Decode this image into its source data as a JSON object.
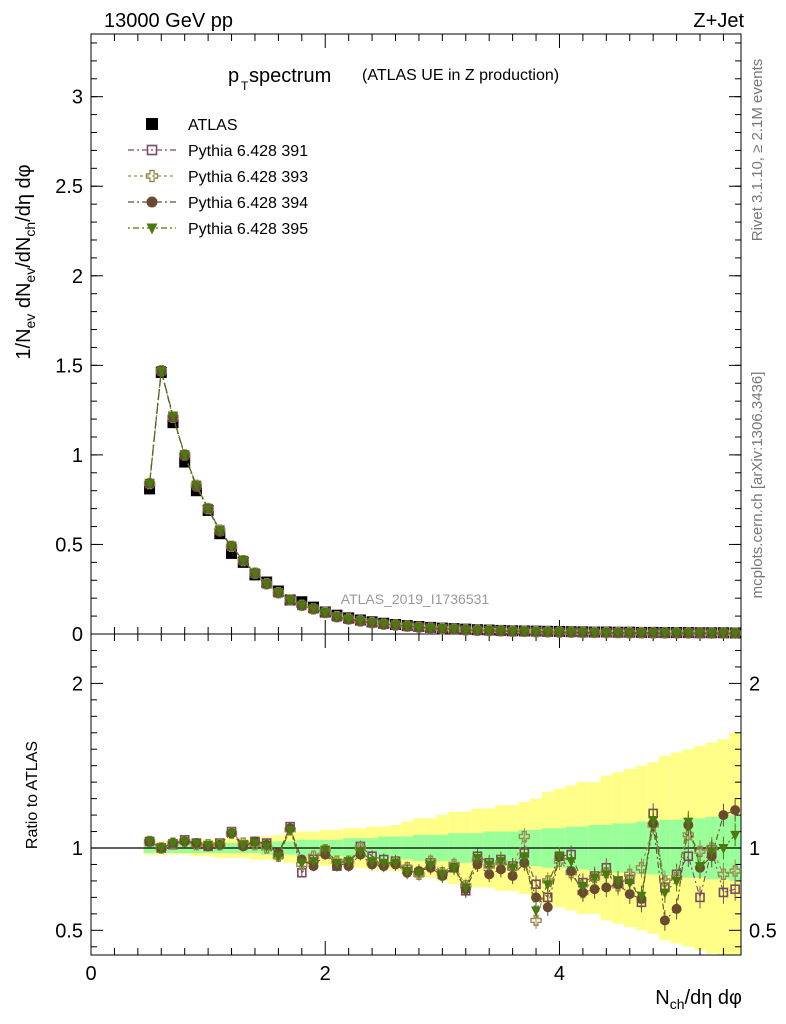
{
  "header": {
    "left": "13000 GeV pp",
    "right": "Z+Jet"
  },
  "side_text": {
    "rivet": "Rivet 3.1.10, ≥ 2.1M events",
    "mcplots": "mcplots.cern.ch [arXiv:1306.3436]"
  },
  "watermark": "ATLAS_2019_I1736531",
  "chart_data": [
    {
      "type": "scatter",
      "panel": "main",
      "title_main": "p",
      "title_sub": "T",
      "title_rest": " spectrum",
      "title_paren": "(ATLAS UE in Z production)",
      "ylabel": "1/N_ev dN_ev/dN_ch/dη dφ",
      "xlim": [
        0,
        5.55
      ],
      "ylim": [
        0,
        3.35
      ],
      "y_ticks": [
        0,
        0.5,
        1,
        1.5,
        2,
        2.5,
        3
      ],
      "y_tick_labels": [
        "0",
        "0.5",
        "1",
        "1.5",
        "2",
        "2.5",
        "3"
      ],
      "x": [
        0.5,
        0.6,
        0.7,
        0.8,
        0.9,
        1.0,
        1.1,
        1.2,
        1.3,
        1.4,
        1.5,
        1.6,
        1.7,
        1.8,
        1.9,
        2.0,
        2.1,
        2.2,
        2.3,
        2.4,
        2.5,
        2.6,
        2.7,
        2.8,
        2.9,
        3.0,
        3.1,
        3.2,
        3.3,
        3.4,
        3.5,
        3.6,
        3.7,
        3.8,
        3.9,
        4.0,
        4.1,
        4.2,
        4.3,
        4.4,
        4.5,
        4.6,
        4.7,
        4.8,
        4.9,
        5.0,
        5.1,
        5.2,
        5.3,
        5.4,
        5.5
      ],
      "series": [
        {
          "name": "ATLAS",
          "marker": "filled-square",
          "color": "#000000",
          "values": [
            0.81,
            1.46,
            1.18,
            0.96,
            0.8,
            0.69,
            0.56,
            0.45,
            0.4,
            0.33,
            0.29,
            0.24,
            0.19,
            0.18,
            0.15,
            0.123,
            0.105,
            0.09,
            0.078,
            0.068,
            0.06,
            0.053,
            0.047,
            0.042,
            0.037,
            0.033,
            0.03,
            0.027,
            0.024,
            0.022,
            0.02,
            0.018,
            0.017,
            0.016,
            0.015,
            0.014,
            0.013,
            0.012,
            0.011,
            0.011,
            0.01,
            0.01,
            0.009,
            0.009,
            0.008,
            0.008,
            0.008,
            0.007,
            0.007,
            0.007,
            0.006
          ]
        },
        {
          "name": "Pythia 6.428 391",
          "marker": "open-square",
          "color": "#7a4a60",
          "values": [
            0.84,
            1.47,
            1.21,
            1.0,
            0.83,
            0.7,
            0.58,
            0.49,
            0.41,
            0.34,
            0.28,
            0.23,
            0.19,
            0.16,
            0.14,
            0.122,
            0.096,
            0.083,
            0.073,
            0.062,
            0.055,
            0.05,
            0.043,
            0.038,
            0.033,
            0.03,
            0.027,
            0.022,
            0.021,
            0.019,
            0.018,
            0.016,
            0.015,
            0.013,
            0.012,
            0.011,
            0.01,
            0.009,
            0.009,
            0.008,
            0.008,
            0.007,
            0.007,
            0.006,
            0.006,
            0.006,
            0.006,
            0.005,
            0.005,
            0.005,
            0.005
          ]
        },
        {
          "name": "Pythia 6.428 393",
          "marker": "open-cross",
          "color": "#9a8a50",
          "values": [
            0.84,
            1.47,
            1.21,
            1.0,
            0.83,
            0.7,
            0.58,
            0.49,
            0.41,
            0.34,
            0.28,
            0.23,
            0.19,
            0.16,
            0.14,
            0.12,
            0.097,
            0.084,
            0.073,
            0.063,
            0.055,
            0.05,
            0.044,
            0.038,
            0.033,
            0.03,
            0.027,
            0.023,
            0.021,
            0.019,
            0.018,
            0.016,
            0.015,
            0.013,
            0.012,
            0.011,
            0.01,
            0.009,
            0.009,
            0.008,
            0.008,
            0.007,
            0.007,
            0.006,
            0.006,
            0.006,
            0.006,
            0.005,
            0.005,
            0.005,
            0.005
          ]
        },
        {
          "name": "Pythia 6.428 394",
          "marker": "filled-circle",
          "color": "#6a4a30",
          "values": [
            0.84,
            1.47,
            1.21,
            1.0,
            0.82,
            0.7,
            0.57,
            0.49,
            0.41,
            0.34,
            0.28,
            0.23,
            0.19,
            0.16,
            0.14,
            0.118,
            0.094,
            0.082,
            0.071,
            0.062,
            0.054,
            0.049,
            0.043,
            0.037,
            0.032,
            0.029,
            0.026,
            0.022,
            0.02,
            0.018,
            0.017,
            0.015,
            0.014,
            0.012,
            0.011,
            0.01,
            0.009,
            0.009,
            0.008,
            0.008,
            0.007,
            0.007,
            0.006,
            0.006,
            0.006,
            0.005,
            0.005,
            0.005,
            0.005,
            0.005,
            0.005
          ]
        },
        {
          "name": "Pythia 6.428 395",
          "marker": "filled-triangle-down",
          "color": "#4a7a10",
          "values": [
            0.84,
            1.47,
            1.22,
            1.0,
            0.83,
            0.7,
            0.58,
            0.49,
            0.41,
            0.34,
            0.28,
            0.23,
            0.19,
            0.16,
            0.14,
            0.121,
            0.096,
            0.084,
            0.073,
            0.063,
            0.055,
            0.05,
            0.044,
            0.038,
            0.033,
            0.03,
            0.027,
            0.023,
            0.021,
            0.019,
            0.018,
            0.016,
            0.015,
            0.013,
            0.012,
            0.011,
            0.01,
            0.009,
            0.009,
            0.008,
            0.008,
            0.007,
            0.007,
            0.006,
            0.006,
            0.006,
            0.006,
            0.005,
            0.005,
            0.005,
            0.005
          ]
        }
      ]
    },
    {
      "type": "scatter",
      "panel": "ratio",
      "ylabel": "Ratio to ATLAS",
      "xlabel": "N_ch/dη dφ",
      "xlim": [
        0,
        5.55
      ],
      "ylim": [
        0.35,
        2.3
      ],
      "y_ticks": [
        0.5,
        1,
        2
      ],
      "y_tick_labels": [
        "0.5",
        "1",
        "2"
      ],
      "x_ticks": [
        0,
        2,
        4
      ],
      "x_tick_labels": [
        "0",
        "2",
        "4"
      ],
      "band_inner_color": "#99ff99",
      "band_outer_color": "#ffff88",
      "x": [
        0.5,
        0.6,
        0.7,
        0.8,
        0.9,
        1.0,
        1.1,
        1.2,
        1.3,
        1.4,
        1.5,
        1.6,
        1.7,
        1.8,
        1.9,
        2.0,
        2.1,
        2.2,
        2.3,
        2.4,
        2.5,
        2.6,
        2.7,
        2.8,
        2.9,
        3.0,
        3.1,
        3.2,
        3.3,
        3.4,
        3.5,
        3.6,
        3.7,
        3.8,
        3.9,
        4.0,
        4.1,
        4.2,
        4.3,
        4.4,
        4.5,
        4.6,
        4.7,
        4.8,
        4.9,
        5.0,
        5.1,
        5.2,
        5.3,
        5.4,
        5.5
      ],
      "band_inner": [
        0.03,
        0.03,
        0.03,
        0.03,
        0.03,
        0.03,
        0.03,
        0.03,
        0.03,
        0.03,
        0.04,
        0.04,
        0.04,
        0.05,
        0.05,
        0.05,
        0.05,
        0.06,
        0.06,
        0.06,
        0.07,
        0.07,
        0.07,
        0.08,
        0.08,
        0.08,
        0.09,
        0.09,
        0.09,
        0.1,
        0.1,
        0.1,
        0.11,
        0.11,
        0.12,
        0.12,
        0.13,
        0.13,
        0.14,
        0.14,
        0.15,
        0.15,
        0.16,
        0.16,
        0.17,
        0.17,
        0.18,
        0.18,
        0.19,
        0.19,
        0.2
      ],
      "band_outer": [
        0.04,
        0.04,
        0.04,
        0.04,
        0.05,
        0.05,
        0.06,
        0.06,
        0.06,
        0.07,
        0.07,
        0.08,
        0.09,
        0.1,
        0.1,
        0.11,
        0.11,
        0.12,
        0.12,
        0.13,
        0.13,
        0.14,
        0.16,
        0.18,
        0.18,
        0.2,
        0.22,
        0.22,
        0.24,
        0.24,
        0.26,
        0.26,
        0.28,
        0.3,
        0.34,
        0.36,
        0.38,
        0.4,
        0.4,
        0.44,
        0.46,
        0.48,
        0.5,
        0.52,
        0.56,
        0.58,
        0.6,
        0.62,
        0.64,
        0.66,
        0.7
      ],
      "series": [
        {
          "name": "Pythia 6.428 391",
          "marker": "open-square",
          "color": "#7a4a60",
          "values": [
            1.04,
            1.0,
            1.02,
            1.05,
            1.03,
            1.01,
            1.03,
            1.1,
            1.02,
            1.04,
            1.03,
            0.96,
            1.13,
            0.85,
            0.93,
            0.98,
            0.89,
            0.91,
            1.01,
            0.95,
            0.93,
            0.92,
            0.87,
            0.85,
            0.91,
            0.84,
            0.88,
            0.74,
            0.95,
            0.91,
            0.93,
            0.89,
            0.97,
            0.78,
            0.7,
            0.95,
            0.96,
            0.79,
            0.83,
            0.88,
            0.8,
            0.81,
            0.67,
            1.21,
            0.76,
            0.84,
            0.95,
            0.7,
            0.99,
            0.73,
            0.75
          ]
        },
        {
          "name": "Pythia 6.428 393",
          "marker": "open-cross",
          "color": "#9a8a50",
          "values": [
            1.04,
            1.0,
            1.03,
            1.04,
            1.02,
            1.02,
            1.02,
            1.09,
            1.03,
            1.02,
            1.0,
            0.95,
            1.11,
            0.9,
            0.95,
            0.99,
            0.92,
            0.92,
            1.0,
            0.91,
            0.9,
            0.91,
            0.88,
            0.84,
            0.92,
            0.85,
            0.9,
            0.77,
            0.93,
            0.89,
            0.91,
            0.88,
            1.07,
            0.56,
            0.8,
            0.92,
            0.85,
            0.73,
            0.82,
            0.85,
            0.77,
            0.84,
            0.88,
            1.14,
            0.8,
            0.82,
            1.08,
            0.98,
            1.0,
            0.84,
            0.86
          ]
        },
        {
          "name": "Pythia 6.428 394",
          "marker": "filled-circle",
          "color": "#6a4a30",
          "values": [
            1.04,
            1.0,
            1.03,
            1.04,
            1.03,
            1.01,
            1.02,
            1.09,
            1.01,
            1.04,
            1.02,
            0.97,
            1.12,
            0.93,
            0.89,
            0.96,
            0.89,
            0.89,
            0.96,
            0.9,
            0.89,
            0.9,
            0.85,
            0.86,
            0.88,
            0.83,
            0.88,
            0.75,
            0.9,
            0.84,
            0.87,
            0.83,
            0.91,
            0.7,
            0.64,
            0.95,
            0.86,
            0.73,
            0.75,
            0.76,
            0.78,
            0.72,
            0.69,
            1.15,
            0.56,
            0.63,
            1.14,
            0.88,
            0.95,
            1.2,
            1.23
          ]
        },
        {
          "name": "Pythia 6.428 395",
          "marker": "filled-triangle-down",
          "color": "#4a7a10",
          "values": [
            1.04,
            1.0,
            1.03,
            1.04,
            1.03,
            1.02,
            1.02,
            1.09,
            1.02,
            1.03,
            1.01,
            0.95,
            1.11,
            0.91,
            0.92,
            0.99,
            0.91,
            0.92,
            0.98,
            0.92,
            0.91,
            0.91,
            0.86,
            0.85,
            0.9,
            0.84,
            0.88,
            0.76,
            0.94,
            0.9,
            0.92,
            0.88,
            0.95,
            0.62,
            0.78,
            0.95,
            0.92,
            0.77,
            0.82,
            0.84,
            0.8,
            0.79,
            0.71,
            1.17,
            0.73,
            0.8,
            1.16,
            0.89,
            0.98,
            1.0,
            1.08
          ]
        }
      ]
    }
  ]
}
